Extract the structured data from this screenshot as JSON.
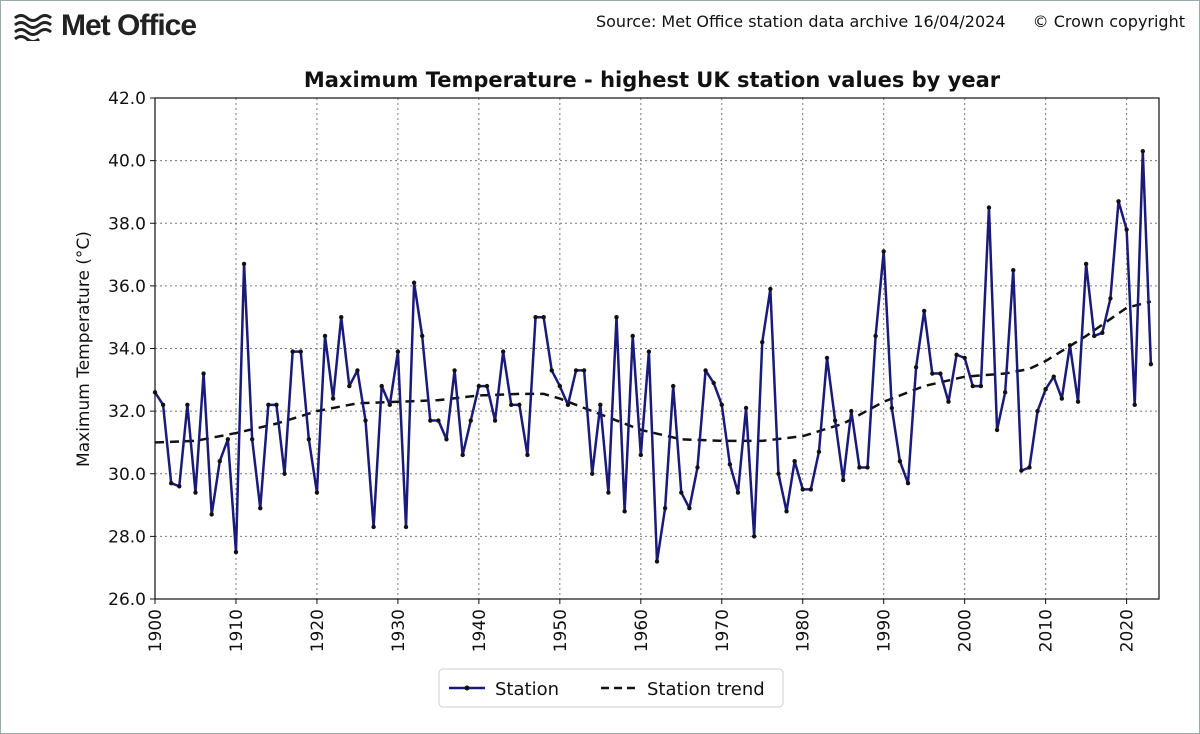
{
  "header": {
    "logo_text": "Met Office",
    "source": "Source: Met Office station data archive 16/04/2024",
    "copyright": "© Crown copyright"
  },
  "colors": {
    "station": "#1a1a7a",
    "trend": "#111111"
  },
  "chart_data": {
    "type": "line",
    "title": "Maximum Temperature - highest UK station values by year",
    "xlabel": "",
    "ylabel": "Maximum Temperature (°C)",
    "xlim": [
      1900,
      2024
    ],
    "ylim": [
      26,
      42
    ],
    "grid": true,
    "legend_position": "bottom-center",
    "xticks": [
      "1900",
      "1910",
      "1920",
      "1930",
      "1940",
      "1950",
      "1960",
      "1970",
      "1980",
      "1990",
      "2000",
      "2010",
      "2020"
    ],
    "yticks": [
      "26.0",
      "28.0",
      "30.0",
      "32.0",
      "34.0",
      "36.0",
      "38.0",
      "40.0",
      "42.0"
    ],
    "series": [
      {
        "name": "Station",
        "x_start": 1900,
        "values": [
          32.6,
          32.2,
          29.7,
          29.6,
          32.2,
          29.4,
          33.2,
          28.7,
          30.4,
          31.1,
          27.5,
          36.7,
          31.1,
          28.9,
          32.2,
          32.2,
          30.0,
          33.9,
          33.9,
          31.1,
          29.4,
          34.4,
          32.4,
          35.0,
          32.8,
          33.3,
          31.7,
          28.3,
          32.8,
          32.2,
          33.9,
          28.3,
          36.1,
          34.4,
          31.7,
          31.7,
          31.1,
          33.3,
          30.6,
          31.7,
          32.8,
          32.8,
          31.7,
          33.9,
          32.2,
          32.2,
          30.6,
          35.0,
          35.0,
          33.3,
          32.8,
          32.2,
          33.3,
          33.3,
          30.0,
          32.2,
          29.4,
          35.0,
          28.8,
          34.4,
          30.6,
          33.9,
          27.2,
          28.9,
          32.8,
          29.4,
          28.9,
          30.2,
          33.3,
          32.9,
          32.2,
          30.3,
          29.4,
          32.1,
          28.0,
          34.2,
          35.9,
          30.0,
          28.8,
          30.4,
          29.5,
          29.5,
          30.7,
          33.7,
          31.7,
          29.8,
          32.0,
          30.2,
          30.2,
          34.4,
          37.1,
          32.1,
          30.4,
          29.7,
          33.4,
          35.2,
          33.2,
          33.2,
          32.3,
          33.8,
          33.7,
          32.8,
          32.8,
          38.5,
          31.4,
          32.6,
          36.5,
          30.1,
          30.2,
          32.0,
          32.7,
          33.1,
          32.4,
          34.1,
          32.3,
          36.7,
          34.4,
          34.5,
          35.6,
          38.7,
          37.8,
          32.2,
          40.3,
          33.5
        ]
      },
      {
        "name": "Station trend",
        "points": [
          [
            1900,
            31.0
          ],
          [
            1905,
            31.05
          ],
          [
            1910,
            31.3
          ],
          [
            1915,
            31.6
          ],
          [
            1920,
            32.0
          ],
          [
            1925,
            32.25
          ],
          [
            1930,
            32.3
          ],
          [
            1935,
            32.35
          ],
          [
            1940,
            32.5
          ],
          [
            1945,
            32.55
          ],
          [
            1948,
            32.55
          ],
          [
            1950,
            32.4
          ],
          [
            1955,
            31.9
          ],
          [
            1960,
            31.4
          ],
          [
            1965,
            31.1
          ],
          [
            1970,
            31.05
          ],
          [
            1975,
            31.05
          ],
          [
            1980,
            31.2
          ],
          [
            1985,
            31.6
          ],
          [
            1990,
            32.3
          ],
          [
            1995,
            32.8
          ],
          [
            2000,
            33.1
          ],
          [
            2005,
            33.2
          ],
          [
            2008,
            33.35
          ],
          [
            2010,
            33.6
          ],
          [
            2015,
            34.4
          ],
          [
            2020,
            35.3
          ],
          [
            2023,
            35.5
          ]
        ]
      }
    ]
  }
}
